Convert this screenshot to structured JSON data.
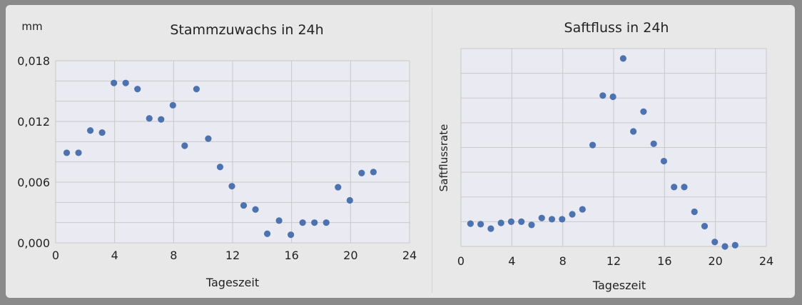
{
  "chart_data": [
    {
      "type": "scatter",
      "title": "Stammzuwachs in 24h",
      "unit_label": "mm",
      "xlabel": "Tageszeit",
      "ylabel": "",
      "xlim": [
        0,
        24
      ],
      "ylim": [
        0,
        0.018
      ],
      "xticks": [
        "0",
        "4",
        "8",
        "12",
        "16",
        "20",
        "24"
      ],
      "yticks": [
        "0,000",
        "0,006",
        "0,012",
        "0,018"
      ],
      "grid": true,
      "color": "#4c72b0",
      "x": [
        0.75,
        1.55,
        2.35,
        3.15,
        3.95,
        4.75,
        5.55,
        6.35,
        7.15,
        7.95,
        8.75,
        9.55,
        10.35,
        11.15,
        11.95,
        12.75,
        13.55,
        14.35,
        15.15,
        15.95,
        16.75,
        17.55,
        18.35,
        19.15,
        19.95,
        20.75,
        21.55
      ],
      "y": [
        0.0089,
        0.0089,
        0.0111,
        0.0109,
        0.0158,
        0.0158,
        0.0152,
        0.0123,
        0.0122,
        0.0136,
        0.0096,
        0.0152,
        0.0103,
        0.0075,
        0.0056,
        0.0037,
        0.0033,
        0.0009,
        0.0022,
        0.0008,
        0.002,
        0.002,
        0.002,
        0.0055,
        0.0042,
        0.0069,
        0.007
      ]
    },
    {
      "type": "scatter",
      "title": "Saftfluss in 24h",
      "xlabel": "Tageszeit",
      "ylabel": "Saftflussrate",
      "xlim": [
        0,
        24
      ],
      "ylim": [
        0,
        8
      ],
      "xticks": [
        "0",
        "4",
        "8",
        "12",
        "16",
        "20",
        "24"
      ],
      "yticks": [],
      "grid": true,
      "color": "#4c72b0",
      "x": [
        0.75,
        1.55,
        2.35,
        3.15,
        3.95,
        4.75,
        5.55,
        6.35,
        7.15,
        7.95,
        8.75,
        9.55,
        10.35,
        11.15,
        11.95,
        12.75,
        13.55,
        14.35,
        15.15,
        15.95,
        16.75,
        17.55,
        18.35,
        19.15,
        19.95,
        20.75,
        21.55
      ],
      "y": [
        0.92,
        0.9,
        0.72,
        0.95,
        1.0,
        1.0,
        0.87,
        1.15,
        1.1,
        1.1,
        1.3,
        1.5,
        4.1,
        6.1,
        6.05,
        7.6,
        4.65,
        5.45,
        4.15,
        3.45,
        2.4,
        2.4,
        1.4,
        0.82,
        0.18,
        0.0,
        0.05
      ]
    }
  ]
}
